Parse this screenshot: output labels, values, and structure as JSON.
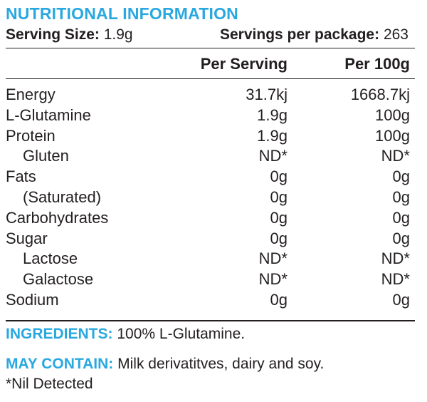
{
  "title": "NUTRITIONAL INFORMATION",
  "serving": {
    "size_label": "Serving Size:",
    "size_value": "1.9g",
    "per_package_label": "Servings per package:",
    "per_package_value": "263"
  },
  "columns": {
    "per_serving": "Per Serving",
    "per_100g": "Per 100g"
  },
  "rows": [
    {
      "label": "Energy",
      "per_serving": "31.7kj",
      "per_100g": "1668.7kj"
    },
    {
      "label": "L-Glutamine",
      "per_serving": "1.9g",
      "per_100g": "100g"
    },
    {
      "label": "Protein",
      "per_serving": "1.9g",
      "per_100g": "100g"
    },
    {
      "label": "Gluten",
      "per_serving": "ND*",
      "per_100g": "ND*"
    },
    {
      "label": "Fats",
      "per_serving": "0g",
      "per_100g": "0g"
    },
    {
      "label": "(Saturated)",
      "per_serving": "0g",
      "per_100g": "0g"
    },
    {
      "label": "Carbohydrates",
      "per_serving": "0g",
      "per_100g": "0g"
    },
    {
      "label": "Sugar",
      "per_serving": "0g",
      "per_100g": "0g"
    },
    {
      "label": "Lactose",
      "per_serving": "ND*",
      "per_100g": "ND*"
    },
    {
      "label": "Galactose",
      "per_serving": "ND*",
      "per_100g": "ND*"
    },
    {
      "label": "Sodium",
      "per_serving": "0g",
      "per_100g": "0g"
    }
  ],
  "ingredients": {
    "label": "INGREDIENTS:",
    "text": " 100% L-Glutamine."
  },
  "may_contain": {
    "label": "MAY CONTAIN:",
    "text": " Milk derivatitves, dairy and soy."
  },
  "footnote": "*Nil Detected",
  "colors": {
    "accent": "#29a8e0",
    "text": "#231f20"
  }
}
